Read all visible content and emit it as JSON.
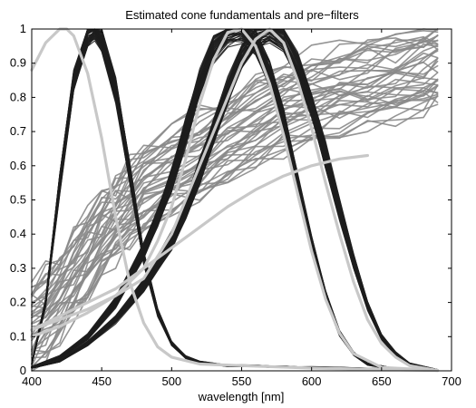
{
  "chart_data": {
    "type": "line",
    "title": "Estimated cone fundamentals and pre−filters",
    "xlabel": "wavelength [nm]",
    "ylabel": "",
    "xlim": [
      400,
      700
    ],
    "ylim": [
      0,
      1
    ],
    "xticks": [
      400,
      450,
      500,
      550,
      600,
      650,
      700
    ],
    "yticks": [
      0,
      0.1,
      0.2,
      0.3,
      0.4,
      0.5,
      0.6,
      0.7,
      0.8,
      0.9,
      1
    ],
    "xtick_labels": [
      "400",
      "450",
      "500",
      "550",
      "600",
      "650",
      "700"
    ],
    "ytick_labels": [
      "0",
      "0.1",
      "0.2",
      "0.3",
      "0.4",
      "0.5",
      "0.6",
      "0.7",
      "0.8",
      "0.9",
      "1"
    ],
    "grid": false,
    "legend": "none",
    "colors": {
      "fundamentals": "#1e1e1e",
      "pre_filters": "#8a8a8a",
      "mean_fundamentals": "#c8c8c8"
    },
    "series": [
      {
        "group": "fundamentals",
        "style": "band",
        "x": [
          400,
          410,
          420,
          430,
          440,
          445,
          450,
          460,
          470,
          480,
          490,
          500,
          510,
          520,
          530,
          540,
          550,
          560,
          570,
          580,
          590,
          600,
          620,
          650,
          690
        ],
        "y": [
          0.02,
          0.2,
          0.55,
          0.85,
          0.98,
          1.0,
          0.97,
          0.82,
          0.58,
          0.33,
          0.17,
          0.08,
          0.04,
          0.025,
          0.02,
          0.015,
          0.015,
          0.015,
          0.012,
          0.012,
          0.01,
          0.01,
          0.008,
          0.005,
          0.002
        ],
        "spread": 0.03
      },
      {
        "group": "fundamentals",
        "style": "band",
        "x": [
          400,
          420,
          440,
          460,
          480,
          490,
          500,
          510,
          520,
          530,
          540,
          550,
          560,
          570,
          580,
          590,
          600,
          610,
          620,
          630,
          640,
          660,
          690
        ],
        "y": [
          0.01,
          0.04,
          0.1,
          0.2,
          0.35,
          0.45,
          0.56,
          0.7,
          0.84,
          0.94,
          0.99,
          1.0,
          0.96,
          0.87,
          0.73,
          0.55,
          0.37,
          0.22,
          0.11,
          0.05,
          0.02,
          0.005,
          0.001
        ],
        "spread": 0.035
      },
      {
        "group": "fundamentals",
        "style": "band",
        "x": [
          400,
          420,
          440,
          460,
          480,
          500,
          510,
          520,
          530,
          540,
          550,
          560,
          570,
          580,
          590,
          600,
          610,
          620,
          630,
          640,
          650,
          660,
          670,
          690
        ],
        "y": [
          0.01,
          0.03,
          0.08,
          0.15,
          0.25,
          0.38,
          0.47,
          0.58,
          0.7,
          0.82,
          0.92,
          0.98,
          1.0,
          0.97,
          0.89,
          0.78,
          0.63,
          0.47,
          0.32,
          0.19,
          0.1,
          0.05,
          0.02,
          0.002
        ],
        "spread": 0.035
      },
      {
        "group": "pre_filters",
        "style": "band",
        "x": [
          400,
          410,
          420,
          430,
          440,
          450,
          460,
          470,
          480,
          500,
          520,
          540,
          560,
          580,
          600,
          620,
          640,
          660,
          680,
          690
        ],
        "y": [
          0.13,
          0.17,
          0.22,
          0.28,
          0.34,
          0.4,
          0.45,
          0.49,
          0.53,
          0.58,
          0.63,
          0.68,
          0.73,
          0.77,
          0.8,
          0.82,
          0.84,
          0.86,
          0.88,
          0.9
        ],
        "spread": 0.12
      },
      {
        "group": "mean_fundamentals",
        "x": [
          400,
          410,
          420,
          425,
          430,
          440,
          450,
          460,
          470,
          480,
          490,
          500,
          520,
          550,
          600,
          650,
          690
        ],
        "y": [
          0.88,
          0.96,
          1.0,
          1.0,
          0.98,
          0.87,
          0.68,
          0.45,
          0.26,
          0.14,
          0.07,
          0.04,
          0.02,
          0.015,
          0.008,
          0.004,
          0.001
        ]
      },
      {
        "group": "mean_fundamentals",
        "x": [
          400,
          420,
          440,
          460,
          480,
          490,
          500,
          510,
          520,
          530,
          540,
          550,
          560,
          570,
          580,
          590,
          600,
          610,
          620,
          630,
          650,
          690
        ],
        "y": [
          0.1,
          0.13,
          0.17,
          0.22,
          0.3,
          0.38,
          0.48,
          0.62,
          0.78,
          0.91,
          0.99,
          1.0,
          0.95,
          0.84,
          0.69,
          0.52,
          0.35,
          0.21,
          0.11,
          0.05,
          0.01,
          0.001
        ]
      },
      {
        "group": "mean_fundamentals",
        "x": [
          400,
          420,
          440,
          460,
          480,
          500,
          520,
          540,
          550,
          560,
          570,
          580,
          590,
          600,
          610,
          620,
          630,
          640,
          650,
          660,
          670,
          690
        ],
        "y": [
          0.12,
          0.15,
          0.18,
          0.22,
          0.27,
          0.4,
          0.6,
          0.8,
          0.9,
          0.97,
          1.0,
          0.96,
          0.85,
          0.71,
          0.55,
          0.4,
          0.26,
          0.15,
          0.08,
          0.04,
          0.015,
          0.001
        ]
      },
      {
        "group": "mean_fundamentals",
        "x": [
          400,
          420,
          440,
          460,
          480,
          500,
          520,
          540,
          560,
          580,
          600,
          620,
          640
        ],
        "y": [
          0.12,
          0.16,
          0.2,
          0.24,
          0.3,
          0.36,
          0.42,
          0.48,
          0.53,
          0.57,
          0.6,
          0.62,
          0.63
        ]
      }
    ]
  }
}
